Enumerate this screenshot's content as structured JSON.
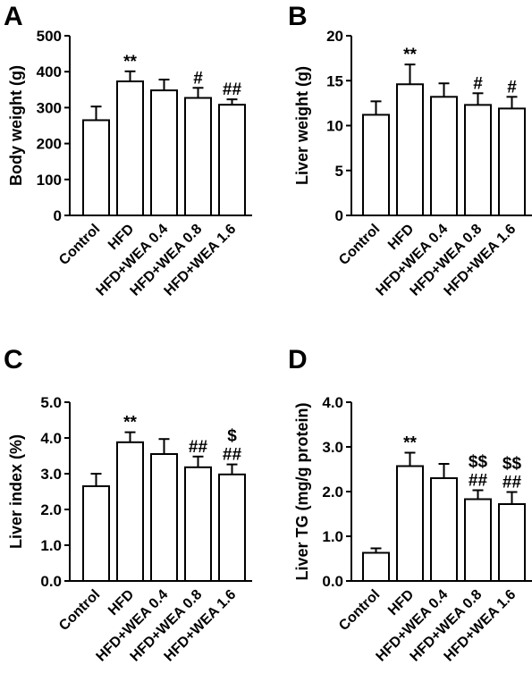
{
  "chart_data": [
    {
      "panel": "A",
      "type": "bar",
      "ylabel": "Body weight (g)",
      "ylim": [
        0,
        500
      ],
      "yticks": [
        "0",
        "100",
        "200",
        "300",
        "400",
        "500"
      ],
      "categories": [
        "Control",
        "HFD",
        "HFD+WEA 0.4",
        "HFD+WEA 0.8",
        "HFD+WEA 1.6"
      ],
      "values": [
        265,
        373,
        348,
        327,
        308
      ],
      "errors": [
        38,
        28,
        30,
        28,
        15
      ],
      "annotations": [
        [],
        [
          "**"
        ],
        [],
        [
          "#"
        ],
        [
          "##"
        ]
      ],
      "grid": false
    },
    {
      "panel": "B",
      "type": "bar",
      "ylabel": "Liver weight (g)",
      "ylim": [
        0,
        20
      ],
      "yticks": [
        "0",
        "5",
        "10",
        "15",
        "20"
      ],
      "categories": [
        "Control",
        "HFD",
        "HFD+WEA 0.4",
        "HFD+WEA 0.8",
        "HFD+WEA 1.6"
      ],
      "values": [
        11.2,
        14.6,
        13.2,
        12.3,
        11.9
      ],
      "errors": [
        1.5,
        2.2,
        1.5,
        1.3,
        1.3
      ],
      "annotations": [
        [],
        [
          "**"
        ],
        [],
        [
          "#"
        ],
        [
          "#"
        ]
      ],
      "grid": false
    },
    {
      "panel": "C",
      "type": "bar",
      "ylabel": "Liver index (%)",
      "ylim": [
        0,
        5
      ],
      "yticks": [
        "0.0",
        "1.0",
        "2.0",
        "3.0",
        "4.0",
        "5.0"
      ],
      "categories": [
        "Control",
        "HFD",
        "HFD+WEA 0.4",
        "HFD+WEA 0.8",
        "HFD+WEA 1.6"
      ],
      "values": [
        2.65,
        3.88,
        3.55,
        3.18,
        2.98
      ],
      "errors": [
        0.35,
        0.28,
        0.42,
        0.3,
        0.28
      ],
      "annotations": [
        [],
        [
          "**"
        ],
        [],
        [
          "##"
        ],
        [
          "##",
          "$"
        ]
      ],
      "grid": false
    },
    {
      "panel": "D",
      "type": "bar",
      "ylabel": "Liver TG (mg/g protein)",
      "ylim": [
        0,
        4
      ],
      "yticks": [
        "0.0",
        "1.0",
        "2.0",
        "3.0",
        "4.0"
      ],
      "categories": [
        "Control",
        "HFD",
        "HFD+WEA 0.4",
        "HFD+WEA 0.8",
        "HFD+WEA 1.6"
      ],
      "values": [
        0.63,
        2.57,
        2.3,
        1.83,
        1.72
      ],
      "errors": [
        0.1,
        0.3,
        0.32,
        0.2,
        0.27
      ],
      "annotations": [
        [],
        [
          "**"
        ],
        [],
        [
          "##",
          "$$"
        ],
        [
          "##",
          "$$"
        ]
      ],
      "grid": false
    }
  ]
}
